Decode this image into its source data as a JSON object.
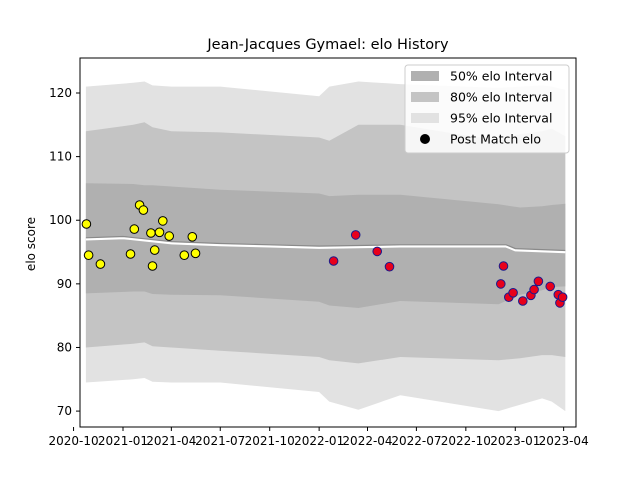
{
  "chart_data": {
    "type": "scatter",
    "title": "Jean-Jacques Gymael: elo History",
    "xlabel": "",
    "ylabel": "elo score",
    "ylim": [
      67.5,
      125.5
    ],
    "xlim": [
      "2020-10-13",
      "2023-04-24"
    ],
    "yticks": [
      70,
      80,
      90,
      100,
      110,
      120
    ],
    "xticks": [
      "2020-10",
      "2021-01",
      "2021-04",
      "2021-07",
      "2021-10",
      "2022-01",
      "2022-04",
      "2022-07",
      "2022-10",
      "2023-01",
      "2023-04"
    ],
    "grid": false,
    "legend_position": "top-right",
    "legend": [
      {
        "label": "50% elo Interval",
        "color": "#b0b0b0"
      },
      {
        "label": "80% elo Interval",
        "color": "#c4c4c4"
      },
      {
        "label": "95% elo Interval",
        "color": "#e2e2e2"
      },
      {
        "label": "Post Match elo",
        "color": "#000000"
      }
    ],
    "interval_bands": {
      "x": [
        "2020-10-24",
        "2021-01-20",
        "2021-02-10",
        "2021-02-25",
        "2021-04-01",
        "2021-07-01",
        "2022-01-01",
        "2022-01-20",
        "2022-03-15",
        "2022-06-01",
        "2022-12-01",
        "2023-01-10",
        "2023-02-20",
        "2023-03-10",
        "2023-04-04"
      ],
      "p95_low": [
        74.5,
        75.0,
        75.2,
        74.6,
        74.5,
        74.5,
        73.0,
        71.5,
        70.2,
        72.5,
        70.0,
        71.0,
        72.0,
        71.5,
        70.0
      ],
      "p95_high": [
        121.0,
        121.6,
        121.8,
        121.2,
        121.0,
        121.0,
        119.5,
        121.0,
        121.8,
        121.4,
        120.8,
        121.0,
        121.2,
        121.0,
        120.5
      ],
      "p80_low": [
        80.0,
        80.6,
        80.8,
        80.2,
        80.0,
        79.5,
        78.5,
        78.0,
        77.5,
        78.5,
        78.0,
        78.3,
        78.8,
        78.8,
        78.5
      ],
      "p80_high": [
        114.0,
        115.0,
        115.4,
        114.6,
        114.0,
        113.8,
        113.0,
        112.5,
        115.0,
        115.0,
        112.5,
        113.5,
        114.0,
        114.4,
        113.2
      ],
      "p50_low": [
        88.5,
        88.8,
        88.8,
        88.4,
        88.3,
        88.2,
        87.2,
        86.6,
        86.2,
        87.3,
        86.8,
        88.3,
        89.0,
        89.5,
        89.6
      ],
      "p50_high": [
        105.8,
        105.7,
        105.5,
        105.5,
        105.3,
        104.8,
        104.2,
        103.8,
        104.0,
        104.0,
        102.5,
        102.0,
        102.2,
        102.4,
        102.6
      ]
    },
    "mean_line": {
      "x": [
        "2020-10-24",
        "2021-01-01",
        "2021-04-01",
        "2021-07-01",
        "2021-10-01",
        "2022-01-01",
        "2022-03-15",
        "2022-06-01",
        "2022-10-01",
        "2022-12-15",
        "2023-01-01",
        "2023-04-04"
      ],
      "y": [
        97.0,
        97.2,
        96.4,
        96.1,
        95.9,
        95.7,
        95.8,
        95.9,
        95.9,
        95.9,
        95.3,
        95.0
      ]
    },
    "series": [
      {
        "color": "#ffff00",
        "x": [
          "2020-10-25",
          "2020-10-29",
          "2020-11-20",
          "2021-01-15",
          "2021-01-22",
          "2021-02-01",
          "2021-02-08",
          "2021-02-22",
          "2021-02-25",
          "2021-03-01",
          "2021-03-10",
          "2021-03-16",
          "2021-03-28",
          "2021-04-25",
          "2021-05-10",
          "2021-05-16"
        ],
        "y": [
          99.4,
          94.5,
          93.1,
          94.7,
          98.6,
          102.4,
          101.6,
          98.0,
          92.8,
          95.3,
          98.1,
          99.9,
          97.5,
          94.5,
          97.4,
          94.8
        ]
      },
      {
        "color": "#e8001b",
        "x": [
          "2022-01-28",
          "2022-03-10",
          "2022-04-19",
          "2022-05-12",
          "2022-12-05",
          "2022-12-10",
          "2022-12-20",
          "2022-12-28",
          "2023-01-15",
          "2023-01-30",
          "2023-02-05",
          "2023-02-13",
          "2023-03-07",
          "2023-03-22",
          "2023-03-25",
          "2023-03-30"
        ],
        "y": [
          93.6,
          97.7,
          95.1,
          92.7,
          90.0,
          92.8,
          87.9,
          88.6,
          87.3,
          88.2,
          89.1,
          90.4,
          89.6,
          88.3,
          87.0,
          87.9
        ]
      }
    ]
  }
}
